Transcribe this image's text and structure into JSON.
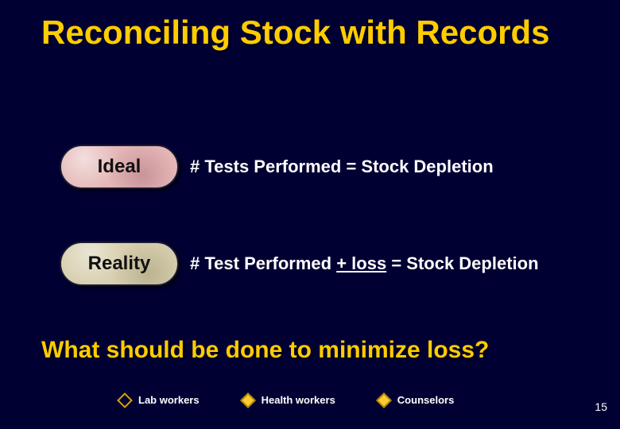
{
  "title": "Reconciling Stock with Records",
  "ideal": {
    "label": "Ideal",
    "equation": "# Tests Performed = Stock Depletion"
  },
  "reality": {
    "label": "Reality",
    "eq_prefix": "# Test Performed ",
    "eq_loss": "+ loss",
    "eq_suffix": " = Stock Depletion"
  },
  "question": "What should be done to minimize loss?",
  "legend": {
    "lab": "Lab workers",
    "health": "Health workers",
    "counselors": "Counselors"
  },
  "page_number": "15",
  "colors": {
    "background": "#000033",
    "title": "#ffcc00",
    "body_text": "#ffffff",
    "pill_ideal_bg": "#e4b7b6",
    "pill_reality_bg": "#d8d0b0"
  }
}
